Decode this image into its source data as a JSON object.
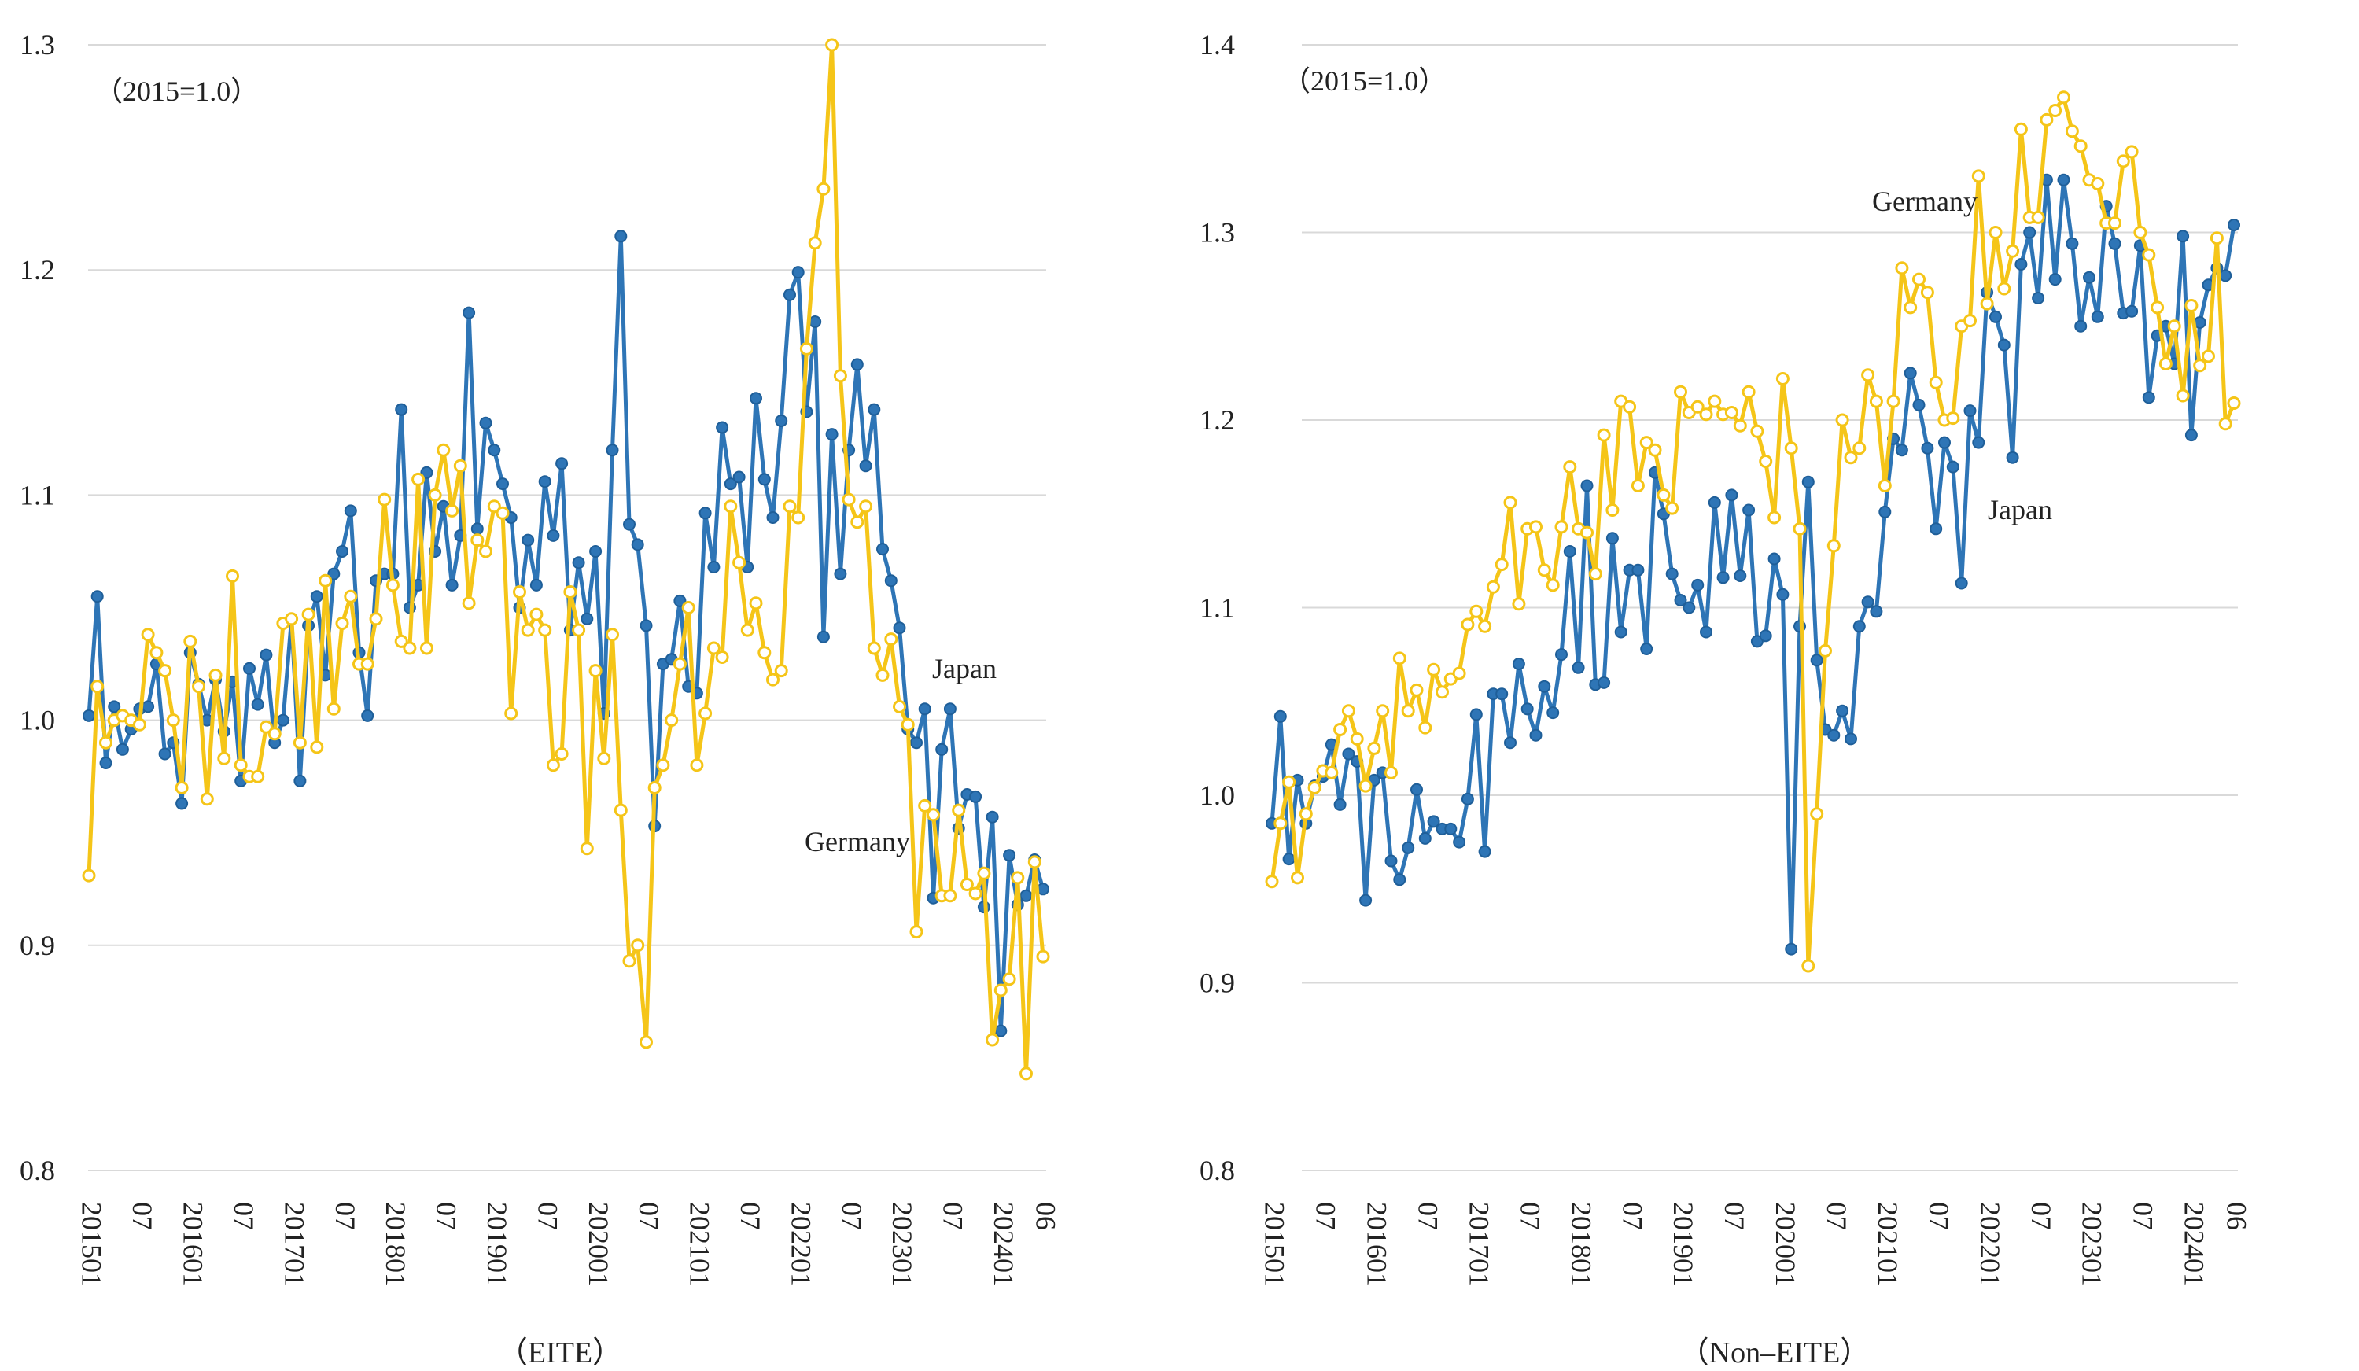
{
  "chart_data": [
    {
      "type": "line",
      "xlabel": "（EITE）",
      "ylabel": "",
      "ylim": [
        0.8,
        1.3
      ],
      "yticks": [
        "0.8",
        "0.9",
        "1.0",
        "1.1",
        "1.2",
        "1.3"
      ],
      "xtick_labels": [
        "201501",
        "07",
        "201601",
        "07",
        "201701",
        "07",
        "201801",
        "07",
        "201901",
        "07",
        "202001",
        "07",
        "202101",
        "07",
        "202201",
        "07",
        "202301",
        "07",
        "202401",
        "06"
      ],
      "annotations": [
        "（2015=1.0）",
        "Japan",
        "Germany"
      ],
      "series": [
        {
          "name": "Japan",
          "color": "#2e75b6",
          "values": [
            1.002,
            1.055,
            0.981,
            1.006,
            0.987,
            0.996,
            1.005,
            1.006,
            1.025,
            0.985,
            0.99,
            0.963,
            1.03,
            1.016,
            1.0,
            1.018,
            0.995,
            1.017,
            0.973,
            1.023,
            1.007,
            1.029,
            0.99,
            1.0,
            1.045,
            0.973,
            1.042,
            1.055,
            1.02,
            1.065,
            1.075,
            1.093,
            1.03,
            1.002,
            1.062,
            1.065,
            1.065,
            1.138,
            1.05,
            1.06,
            1.11,
            1.075,
            1.095,
            1.06,
            1.082,
            1.181,
            1.085,
            1.132,
            1.12,
            1.105,
            1.09,
            1.05,
            1.08,
            1.06,
            1.106,
            1.082,
            1.114,
            1.04,
            1.07,
            1.045,
            1.075,
            1.003,
            1.12,
            1.215,
            1.087,
            1.078,
            1.042,
            0.953,
            1.025,
            1.027,
            1.053,
            1.015,
            1.012,
            1.092,
            1.068,
            1.13,
            1.105,
            1.108,
            1.068,
            1.143,
            1.107,
            1.09,
            1.133,
            1.189,
            1.199,
            1.137,
            1.177,
            1.037,
            1.127,
            1.065,
            1.12,
            1.158,
            1.113,
            1.138,
            1.076,
            1.062,
            1.041,
            0.996,
            0.99,
            1.005,
            0.921,
            0.987,
            1.005,
            0.952,
            0.967,
            0.966,
            0.917,
            0.957,
            0.862,
            0.94,
            0.918,
            0.922,
            0.938,
            0.925
          ]
        },
        {
          "name": "Germany",
          "color": "#f5c518",
          "values": [
            0.931,
            1.015,
            0.99,
            1.0,
            1.002,
            1.0,
            0.998,
            1.038,
            1.03,
            1.022,
            1.0,
            0.97,
            1.035,
            1.015,
            0.965,
            1.02,
            0.983,
            1.064,
            0.98,
            0.975,
            0.975,
            0.997,
            0.994,
            1.043,
            1.045,
            0.99,
            1.047,
            0.988,
            1.062,
            1.005,
            1.043,
            1.055,
            1.025,
            1.025,
            1.045,
            1.098,
            1.06,
            1.035,
            1.032,
            1.107,
            1.032,
            1.1,
            1.12,
            1.093,
            1.113,
            1.052,
            1.08,
            1.075,
            1.095,
            1.092,
            1.003,
            1.057,
            1.04,
            1.047,
            1.04,
            0.98,
            0.985,
            1.057,
            1.04,
            0.943,
            1.022,
            0.983,
            1.038,
            0.96,
            0.893,
            0.9,
            0.857,
            0.97,
            0.98,
            1.0,
            1.025,
            1.05,
            0.98,
            1.003,
            1.032,
            1.028,
            1.095,
            1.07,
            1.04,
            1.052,
            1.03,
            1.018,
            1.022,
            1.095,
            1.09,
            1.165,
            1.212,
            1.236,
            1.3,
            1.153,
            1.098,
            1.088,
            1.095,
            1.032,
            1.02,
            1.036,
            1.006,
            0.998,
            0.906,
            0.962,
            0.958,
            0.922,
            0.922,
            0.96,
            0.927,
            0.923,
            0.932,
            0.858,
            0.88,
            0.885,
            0.93,
            0.843,
            0.937,
            0.895
          ]
        }
      ]
    },
    {
      "type": "line",
      "xlabel": "（Non–EITE）",
      "ylabel": "",
      "ylim": [
        0.8,
        1.4
      ],
      "yticks": [
        "0.8",
        "0.9",
        "1.0",
        "1.1",
        "1.2",
        "1.3",
        "1.4"
      ],
      "xtick_labels": [
        "201501",
        "07",
        "201601",
        "07",
        "201701",
        "07",
        "201801",
        "07",
        "201901",
        "07",
        "202001",
        "07",
        "202101",
        "07",
        "202201",
        "07",
        "202301",
        "07",
        "202401",
        "06"
      ],
      "annotations": [
        "（2015=1.0）",
        "Germany",
        "Japan"
      ],
      "series": [
        {
          "name": "Japan",
          "color": "#2e75b6",
          "values": [
            0.985,
            1.042,
            0.966,
            1.008,
            0.985,
            1.005,
            1.01,
            1.027,
            0.995,
            1.022,
            1.018,
            0.944,
            1.008,
            1.012,
            0.965,
            0.955,
            0.972,
            1.003,
            0.977,
            0.986,
            0.982,
            0.982,
            0.975,
            0.998,
            1.043,
            0.97,
            1.054,
            1.054,
            1.028,
            1.07,
            1.046,
            1.032,
            1.058,
            1.044,
            1.075,
            1.13,
            1.068,
            1.165,
            1.059,
            1.06,
            1.137,
            1.087,
            1.12,
            1.12,
            1.078,
            1.172,
            1.15,
            1.118,
            1.104,
            1.1,
            1.112,
            1.087,
            1.156,
            1.116,
            1.16,
            1.117,
            1.152,
            1.082,
            1.085,
            1.126,
            1.107,
            0.918,
            1.09,
            1.167,
            1.072,
            1.035,
            1.032,
            1.045,
            1.03,
            1.09,
            1.103,
            1.098,
            1.151,
            1.19,
            1.184,
            1.225,
            1.208,
            1.185,
            1.142,
            1.188,
            1.175,
            1.113,
            1.205,
            1.188,
            1.268,
            1.255,
            1.24,
            1.18,
            1.283,
            1.3,
            1.265,
            1.328,
            1.275,
            1.328,
            1.294,
            1.25,
            1.276,
            1.255,
            1.314,
            1.294,
            1.257,
            1.258,
            1.293,
            1.212,
            1.245,
            1.25,
            1.23,
            1.298,
            1.192,
            1.252,
            1.272,
            1.281,
            1.277,
            1.304
          ]
        },
        {
          "name": "Germany",
          "color": "#f5c518",
          "values": [
            0.954,
            0.985,
            1.007,
            0.956,
            0.99,
            1.004,
            1.013,
            1.012,
            1.035,
            1.045,
            1.03,
            1.005,
            1.025,
            1.045,
            1.012,
            1.073,
            1.045,
            1.056,
            1.036,
            1.067,
            1.055,
            1.062,
            1.065,
            1.091,
            1.098,
            1.09,
            1.111,
            1.123,
            1.156,
            1.102,
            1.142,
            1.143,
            1.12,
            1.112,
            1.143,
            1.175,
            1.142,
            1.14,
            1.118,
            1.192,
            1.152,
            1.21,
            1.207,
            1.165,
            1.188,
            1.184,
            1.16,
            1.153,
            1.215,
            1.204,
            1.207,
            1.203,
            1.21,
            1.203,
            1.204,
            1.197,
            1.215,
            1.194,
            1.178,
            1.148,
            1.222,
            1.185,
            1.142,
            0.909,
            0.99,
            1.077,
            1.133,
            1.2,
            1.18,
            1.185,
            1.224,
            1.21,
            1.165,
            1.21,
            1.281,
            1.26,
            1.275,
            1.268,
            1.22,
            1.2,
            1.201,
            1.25,
            1.253,
            1.33,
            1.262,
            1.3,
            1.27,
            1.29,
            1.355,
            1.308,
            1.308,
            1.36,
            1.365,
            1.372,
            1.354,
            1.346,
            1.328,
            1.326,
            1.305,
            1.305,
            1.338,
            1.343,
            1.3,
            1.288,
            1.26,
            1.23,
            1.25,
            1.213,
            1.261,
            1.229,
            1.234,
            1.297,
            1.198,
            1.209
          ]
        }
      ]
    }
  ]
}
